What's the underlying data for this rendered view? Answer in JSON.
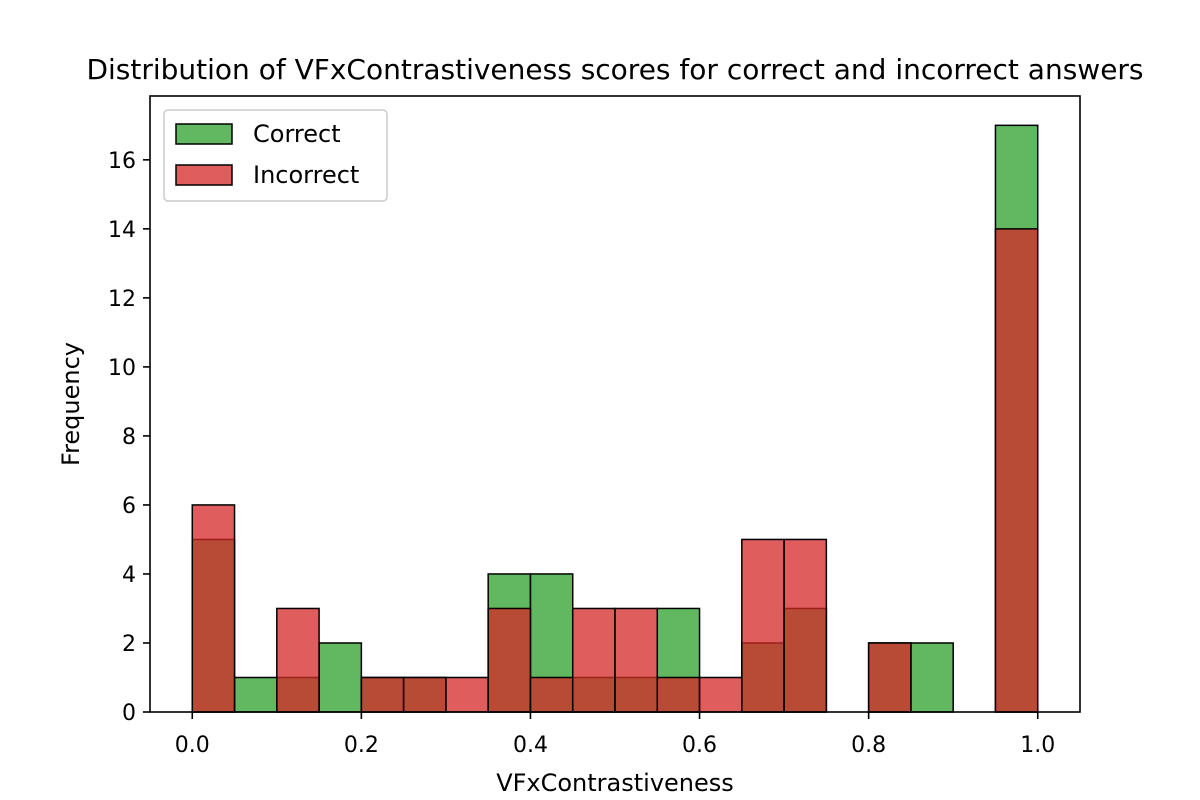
{
  "chart_data": {
    "type": "bar",
    "title": "Distribution of VFxContrastiveness scores for correct and incorrect answers",
    "xlabel": "VFxContrastiveness",
    "ylabel": "Frequency",
    "xlim": [
      -0.05,
      1.05
    ],
    "ylim": [
      0,
      17.85
    ],
    "xticks": [
      0.0,
      0.2,
      0.4,
      0.6,
      0.8,
      1.0
    ],
    "xtick_labels": [
      "0.0",
      "0.2",
      "0.4",
      "0.6",
      "0.8",
      "1.0"
    ],
    "yticks": [
      0,
      2,
      4,
      6,
      8,
      10,
      12,
      14,
      16
    ],
    "ytick_labels": [
      "0",
      "2",
      "4",
      "6",
      "8",
      "10",
      "12",
      "14",
      "16"
    ],
    "bin_edges": [
      0.0,
      0.05,
      0.1,
      0.15,
      0.2,
      0.25,
      0.3,
      0.35,
      0.4,
      0.45,
      0.5,
      0.55,
      0.6,
      0.65,
      0.7,
      0.75,
      0.8,
      0.85,
      0.9,
      0.95,
      1.0
    ],
    "series": [
      {
        "name": "Correct",
        "color": "#2ca02c",
        "values": [
          5,
          1,
          1,
          2,
          1,
          1,
          0,
          4,
          4,
          1,
          1,
          3,
          0,
          2,
          3,
          0,
          2,
          2,
          0,
          17
        ]
      },
      {
        "name": "Incorrect",
        "color": "#d62728",
        "values": [
          6,
          0,
          3,
          0,
          1,
          1,
          1,
          3,
          1,
          3,
          3,
          1,
          1,
          5,
          5,
          0,
          2,
          0,
          0,
          14
        ]
      }
    ],
    "legend_position": "top-left",
    "grid": false
  }
}
